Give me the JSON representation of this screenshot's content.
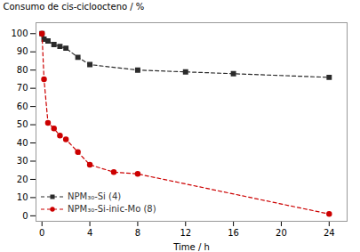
{
  "chart_data": {
    "type": "line",
    "xlabel": "Time / h",
    "ylabel": "Consumo de cis-cicloocteno / %",
    "xlim": [
      -0.5,
      25.5
    ],
    "ylim": [
      -3,
      106
    ],
    "xticks": [
      0,
      4,
      8,
      12,
      16,
      20,
      24
    ],
    "yticks": [
      0,
      10,
      20,
      30,
      40,
      50,
      60,
      70,
      80,
      90,
      100
    ],
    "grid": false,
    "legend": "lower left",
    "series": [
      {
        "name": "NPM₃₀-Si (4)",
        "color": "#2b2b2b",
        "marker": "square",
        "line_style": "dashed",
        "x": [
          0,
          0.17,
          0.5,
          1,
          1.5,
          2,
          3,
          4,
          8,
          12,
          16,
          24
        ],
        "values": [
          100,
          97,
          96,
          94,
          93,
          92,
          87,
          83,
          80,
          79,
          78,
          76
        ]
      },
      {
        "name": "NPM₃₀-Si-inic-Mo (8)",
        "color": "#cc0000",
        "marker": "circle",
        "line_style": "dashed",
        "x": [
          0,
          0.17,
          0.5,
          1,
          1.5,
          2,
          3,
          4,
          6,
          8,
          24
        ],
        "values": [
          100,
          75,
          51,
          48,
          44,
          42,
          35,
          28,
          24,
          23,
          1
        ]
      }
    ]
  }
}
